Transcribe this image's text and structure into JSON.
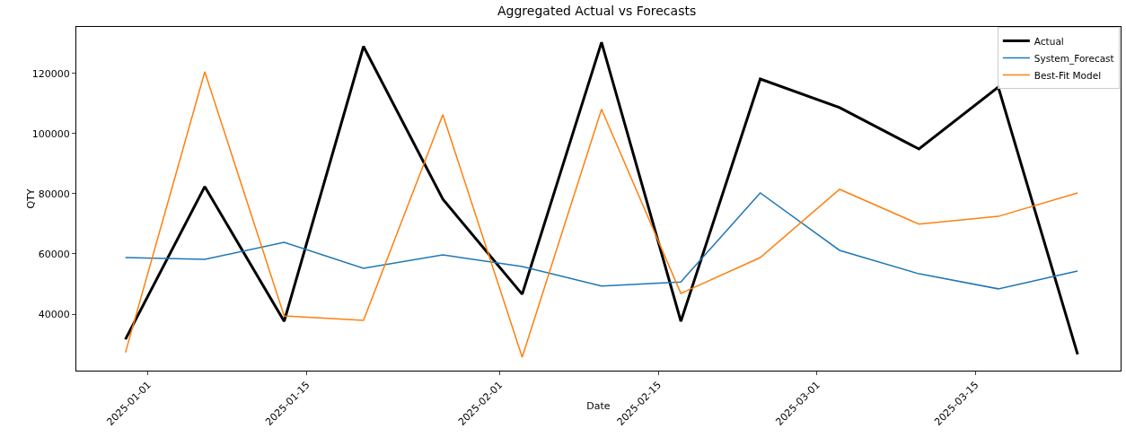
{
  "chart_data": {
    "type": "line",
    "title": "Aggregated Actual vs Forecasts",
    "xlabel": "Date",
    "ylabel": "QTY",
    "x": [
      "2024-12-30",
      "2025-01-06",
      "2025-01-13",
      "2025-01-20",
      "2025-01-27",
      "2025-02-03",
      "2025-02-10",
      "2025-02-17",
      "2025-02-24",
      "2025-03-03",
      "2025-03-10",
      "2025-03-17",
      "2025-03-24"
    ],
    "series": [
      {
        "name": "Actual",
        "color": "#000000",
        "values": [
          31600,
          82400,
          37600,
          129000,
          78200,
          46600,
          130400,
          37600,
          118200,
          108700,
          94900,
          115500,
          26600
        ]
      },
      {
        "name": "System_Forecast",
        "color": "#1f77b4",
        "values": [
          58800,
          58200,
          63900,
          55200,
          59700,
          55800,
          49300,
          50700,
          80300,
          61200,
          53400,
          48400,
          54300
        ]
      },
      {
        "name": "Best-Fit Model",
        "color": "#ff7f0e",
        "values": [
          27200,
          120600,
          39400,
          37900,
          106300,
          25700,
          108100,
          46900,
          58800,
          81500,
          69900,
          72500,
          80300
        ]
      }
    ],
    "xlim": [
      "2024-12-25T16:00",
      "2025-03-27T19:00"
    ],
    "xticks": [
      "2025-01-01",
      "2025-01-15",
      "2025-02-01",
      "2025-02-15",
      "2025-03-01",
      "2025-03-15"
    ],
    "ylim": [
      21200,
      135500
    ],
    "yticks": [
      40000,
      60000,
      80000,
      100000,
      120000
    ],
    "grid": false,
    "legend": "top right",
    "marker": "none",
    "line_style": "solid"
  }
}
